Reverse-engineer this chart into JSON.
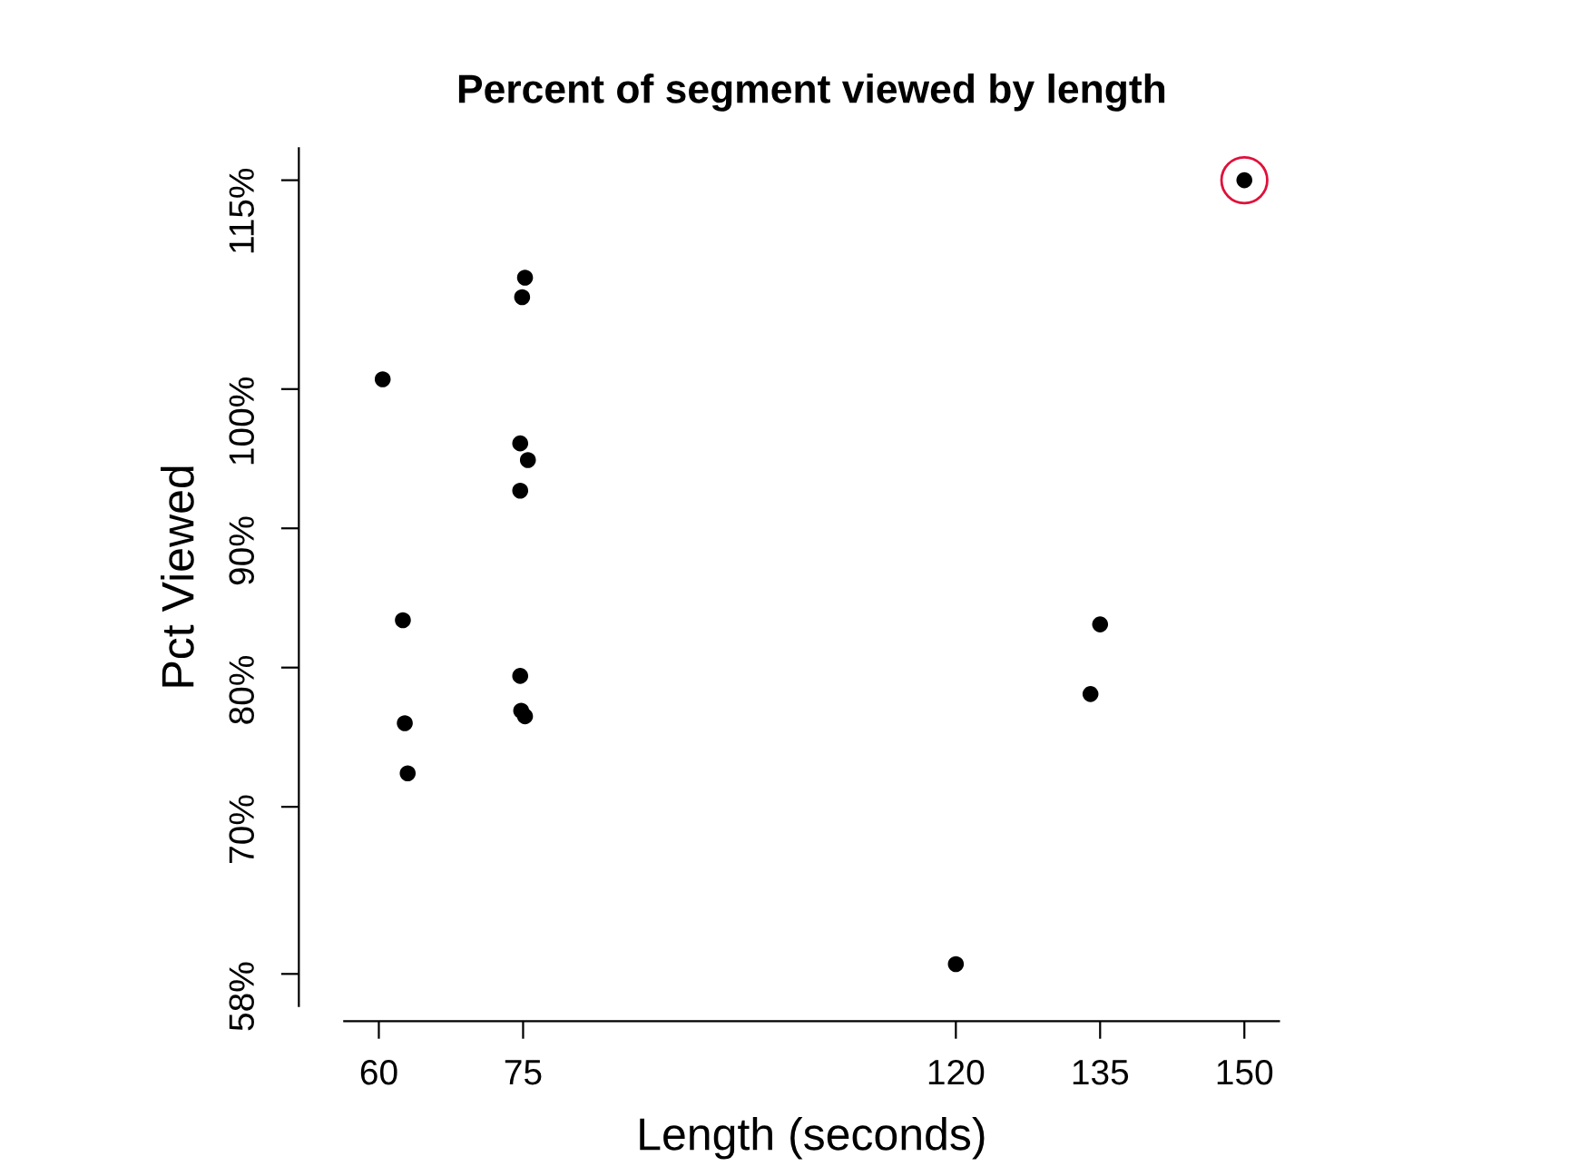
{
  "chart_data": {
    "type": "scatter",
    "title": "Percent of segment viewed by length",
    "xlabel": "Length (seconds)",
    "ylabel": "Pct Viewed",
    "series": [
      {
        "color": "#000000",
        "marker": "circle",
        "x": [
          60.4,
          62.5,
          62.7,
          63.0,
          75.2,
          74.9,
          74.7,
          75.5,
          74.7,
          74.7,
          74.8,
          75.2,
          120,
          135,
          134,
          150
        ],
        "values": [
          100.7,
          83.4,
          76.0,
          72.4,
          108.0,
          106.6,
          96.1,
          94.9,
          92.7,
          79.4,
          76.9,
          76.5,
          58.7,
          83.1,
          78.1,
          115
        ]
      },
      {
        "color": "#e0103a",
        "marker": "circle",
        "x": [
          150
        ],
        "values": [
          115
        ]
      }
    ],
    "xlim": [
      56.4,
      153.6
    ],
    "ylim": [
      55.7,
      117.3
    ],
    "xticks": [
      60,
      75,
      120,
      135,
      150
    ],
    "yticks": [
      {
        "value": 58,
        "label": "58%"
      },
      {
        "value": 70,
        "label": "70%"
      },
      {
        "value": 80,
        "label": "80%"
      },
      {
        "value": 90,
        "label": "90%"
      },
      {
        "value": 100,
        "label": "100%"
      },
      {
        "value": 115,
        "label": "115%"
      }
    ],
    "grid": false,
    "legend": false
  }
}
